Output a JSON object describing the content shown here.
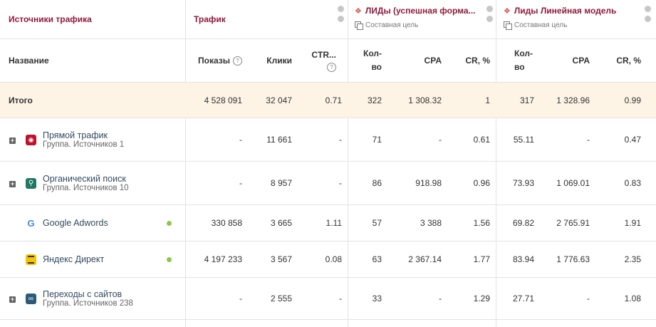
{
  "groups": {
    "sources": "Источники трафика",
    "traffic": "Трафик",
    "leads1": "ЛИДы (успешная форма...",
    "leads2": "Лиды Линейная модель",
    "goal_label": "Составная цель"
  },
  "columns": {
    "name": "Название",
    "shows": "Показы",
    "clicks": "Клики",
    "ctr": "CTR...",
    "count": "Кол-во",
    "cpa": "CPA",
    "cr": "CR, %"
  },
  "total": {
    "label": "Итого",
    "values": [
      "4 528 091",
      "32 047",
      "0.71",
      "322",
      "1 308.32",
      "1",
      "317",
      "1 328.96",
      "0.99"
    ]
  },
  "rows": [
    {
      "title": "Прямой трафик",
      "subtitle": "Группа. Источников 1",
      "icon": "direct-traffic-icon",
      "icon_color": "#c0112b",
      "expandable": true,
      "active": false,
      "values": [
        "-",
        "11 661",
        "-",
        "71",
        "-",
        "0.61",
        "55.11",
        "-",
        "0.47"
      ]
    },
    {
      "title": "Органический поиск",
      "subtitle": "Группа. Источников 10",
      "icon": "search-icon",
      "icon_color": "#1f7a63",
      "expandable": true,
      "active": false,
      "values": [
        "-",
        "8 957",
        "-",
        "86",
        "918.98",
        "0.96",
        "73.93",
        "1 069.01",
        "0.83"
      ]
    },
    {
      "title": "Google Adwords",
      "subtitle": "",
      "icon": "google-icon",
      "icon_color": "#ffffff",
      "expandable": false,
      "active": true,
      "values": [
        "330 858",
        "3 665",
        "1.11",
        "57",
        "3 388",
        "1.56",
        "69.82",
        "2 765.91",
        "1.91"
      ]
    },
    {
      "title": "Яндекс Директ",
      "subtitle": "",
      "icon": "yandex-direct-icon",
      "icon_color": "#f5c400",
      "expandable": false,
      "active": true,
      "values": [
        "4 197 233",
        "3 567",
        "0.08",
        "63",
        "2 367.14",
        "1.77",
        "83.94",
        "1 776.63",
        "2.35"
      ]
    },
    {
      "title": "Переходы с сайтов",
      "subtitle": "Группа. Источников 238",
      "icon": "link-icon",
      "icon_color": "#2c5a78",
      "expandable": true,
      "active": false,
      "values": [
        "-",
        "2 555",
        "-",
        "33",
        "-",
        "1.29",
        "27.71",
        "-",
        "1.08"
      ]
    }
  ]
}
